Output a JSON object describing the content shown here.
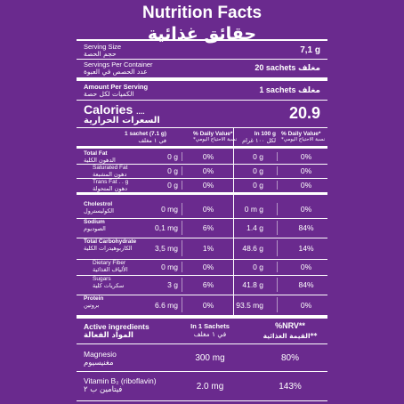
{
  "title_en": "Nutrition Facts",
  "title_ar": "حقائق غذائية",
  "serving": {
    "size_label_en": "Serving Size",
    "size_label_ar": "حجم الحصة",
    "size_value": "7,1 g",
    "container_label_en": "Servings Per Container",
    "container_label_ar": "عدد الحصص في العبوة",
    "container_value": "20 sachets مغلف",
    "amount_label_en": "Amount Per Serving",
    "amount_label_ar": "الكميات لكل حصة",
    "amount_value": "1 sachets مغلف"
  },
  "calories": {
    "label_en": "Calories",
    "dots": "....",
    "label_ar": "السعرات الحرارية",
    "value": "20.9"
  },
  "columns": {
    "per_sachet_en": "1 sachet (7.1 g)",
    "per_sachet_ar": "في ١ مغلف",
    "dv_en": "% Daily Value*",
    "dv_ar": "*نسبة الاحتياج اليومي",
    "per_100_en": "In 100 g",
    "per_100_ar": "لكل ١٠٠ غرام",
    "dv2_en": "% Daily Value*",
    "dv2_ar": "*نسبة الاحتياج اليومي"
  },
  "nutrients": [
    {
      "en": "Total Fat",
      "ar": "الدهون الكلية",
      "sachet": "0 g",
      "dv": "0%",
      "per100": "0 g",
      "dv100": "0%"
    },
    {
      "en": "Saturated Fat",
      "ar": "دهون المشبعة",
      "sachet": "0 g",
      "dv": "0%",
      "per100": "0 g",
      "dv100": "0%"
    },
    {
      "en": "Trans Fat . . g",
      "ar": "دهون المتحولة",
      "sachet": "0 g",
      "dv": "0%",
      "per100": "0 g",
      "dv100": "0%"
    },
    {
      "en": "Cholestrol",
      "ar": "الكوليسترول",
      "sachet": "0 mg",
      "dv": "0%",
      "per100": "0 m g",
      "dv100": "0%"
    },
    {
      "en": "Sodium",
      "ar": "الصوديوم",
      "sachet": "0,1 mg",
      "dv": "6%",
      "per100": "1.4 g",
      "dv100": "84%"
    },
    {
      "en": "Total Carbohydrate",
      "ar": "الكاربوهيدرات الكلية",
      "sachet": "3,5 mg",
      "dv": "1%",
      "per100": "48.6 g",
      "dv100": "14%"
    },
    {
      "en": "Dietary Fiber",
      "ar": "الألياف الغذائية",
      "sachet": "0 mg",
      "dv": "0%",
      "per100": "0 g",
      "dv100": "0%"
    },
    {
      "en": "Sugars",
      "ar": "سكريات كلية",
      "sachet": "3 g",
      "dv": "6%",
      "per100": "41.8 g",
      "dv100": "84%"
    },
    {
      "en": "Protein",
      "ar": "بروتين",
      "sachet": "6.6 mg",
      "dv": "0%",
      "per100": "93.5 mg",
      "dv100": "0%"
    }
  ],
  "active": {
    "label_en": "Active ingredients",
    "label_ar": "المواد الفعالة",
    "col_en": "In 1 Sachets",
    "col_ar": "في ١ مغلف",
    "nrv_en": "%NRV**",
    "nrv_ar": "القيمة الغذائية**",
    "items": [
      {
        "en": "Magnesio",
        "ar": "مغنيسيوم",
        "value": "300 mg",
        "nrv": "80%"
      },
      {
        "en": "Vitamin B₂ (riboflavin)",
        "ar": "فيتامين ب ٢",
        "value": "2.0 mg",
        "nrv": "143%"
      }
    ]
  }
}
